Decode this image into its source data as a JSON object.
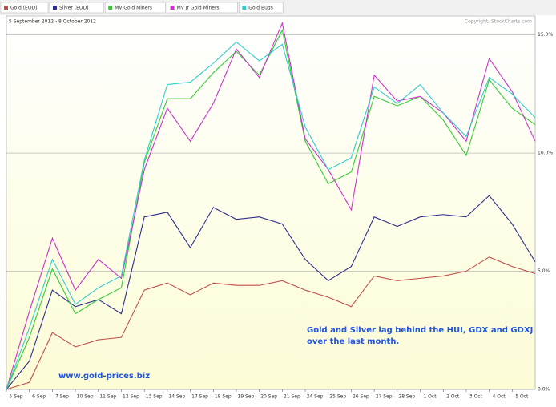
{
  "chart_data": {
    "type": "line",
    "subtitle": "5 September 2012 - 8 October 2012",
    "copyright": "Copyright, StockCharts.com",
    "annotations": [
      "Gold and Silver lag behind the HUI, GDX and GDXJ over the last month.",
      "www.gold-prices.biz"
    ],
    "categories": [
      "5 Sep",
      "6 Sep",
      "7 Sep",
      "10 Sep",
      "11 Sep",
      "12 Sep",
      "13 Sep",
      "14 Sep",
      "17 Sep",
      "18 Sep",
      "19 Sep",
      "20 Sep",
      "21 Sep",
      "24 Sep",
      "25 Sep",
      "26 Sep",
      "27 Sep",
      "28 Sep",
      "1 Oct",
      "2 Oct",
      "3 Oct",
      "4 Oct",
      "5 Oct",
      null
    ],
    "series": [
      {
        "name": "Gold (EOD)",
        "color": "#c0504d",
        "values": [
          0,
          0.3,
          2.4,
          1.8,
          2.1,
          2.2,
          4.2,
          4.5,
          4.0,
          4.5,
          4.4,
          4.4,
          4.6,
          4.2,
          3.9,
          3.5,
          4.8,
          4.6,
          4.7,
          4.8,
          5.0,
          5.6,
          5.2,
          4.9
        ]
      },
      {
        "name": "Silver (EOD)",
        "color": "#2e2e8f",
        "values": [
          0,
          1.2,
          4.2,
          3.5,
          3.8,
          3.2,
          7.3,
          7.5,
          6.0,
          7.7,
          7.2,
          7.3,
          7.0,
          5.5,
          4.6,
          5.2,
          7.3,
          6.9,
          7.3,
          7.4,
          7.3,
          8.2,
          7.0,
          5.4
        ]
      },
      {
        "name": "MV Gold Miners",
        "color": "#33cc33",
        "values": [
          0,
          2.2,
          5.1,
          3.2,
          3.8,
          4.3,
          9.6,
          12.3,
          12.3,
          13.4,
          14.3,
          13.3,
          15.2,
          10.5,
          8.7,
          9.2,
          12.4,
          12.0,
          12.4,
          11.4,
          9.9,
          13.1,
          11.9,
          11.2
        ]
      },
      {
        "name": "MV Jr Gold Miners",
        "color": "#cc33cc",
        "values": [
          0,
          3.3,
          6.4,
          4.2,
          5.5,
          4.7,
          9.3,
          11.9,
          10.5,
          12.1,
          14.4,
          13.2,
          15.5,
          10.6,
          9.3,
          7.6,
          13.3,
          12.2,
          12.4,
          11.7,
          10.5,
          14.0,
          12.6,
          10.5
        ]
      },
      {
        "name": "Gold Bugs",
        "color": "#33cccc",
        "values": [
          0,
          2.6,
          5.5,
          3.6,
          4.3,
          4.8,
          9.7,
          12.9,
          13.0,
          13.8,
          14.7,
          13.9,
          14.6,
          11.1,
          9.3,
          9.8,
          12.8,
          12.1,
          12.9,
          11.7,
          10.7,
          13.2,
          12.5,
          11.5
        ]
      }
    ],
    "ylim": [
      0,
      15.8
    ],
    "yticks": [
      {
        "value": 0,
        "label": "0.0%"
      },
      {
        "value": 5,
        "label": "5.0%"
      },
      {
        "value": 10,
        "label": "10.0%"
      },
      {
        "value": 15,
        "label": "15.0%"
      }
    ],
    "grid": true
  }
}
